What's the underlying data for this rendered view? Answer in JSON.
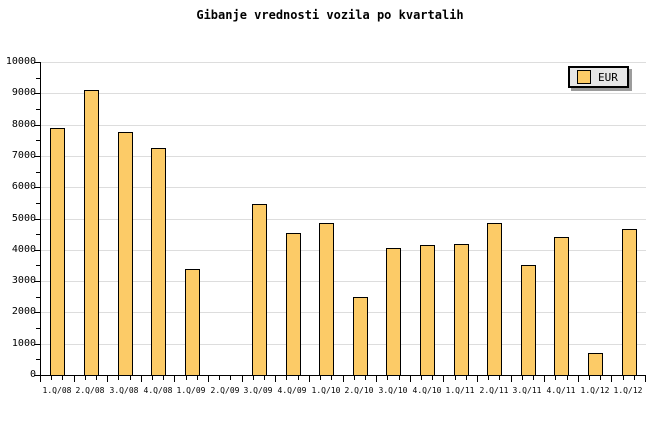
{
  "title": "Gibanje vrednosti vozila po kvartalih",
  "legend": {
    "label": "EUR"
  },
  "colors": {
    "background": "#FFFFFF",
    "bar_fill": "#FCCB67",
    "bar_border": "#000000",
    "grid": "#DDDDDD",
    "axis": "#000000",
    "legend_bg": "#E6E6E6",
    "legend_shadow": "#9C9C9C"
  },
  "y_axis": {
    "tick_labels": [
      "0",
      "1000",
      "2000",
      "3000",
      "4000",
      "5000",
      "6000",
      "7000",
      "8000",
      "9000",
      "10000"
    ]
  },
  "chart_data": {
    "type": "bar",
    "title": "Gibanje vrednosti vozila po kvartalih",
    "categories": [
      "1.Q/08",
      "2.Q/08",
      "3.Q/08",
      "4.Q/08",
      "1.Q/09",
      "2.Q/09",
      "3.Q/09",
      "4.Q/09",
      "1.Q/10",
      "2.Q/10",
      "3.Q/10",
      "4.Q/10",
      "1.Q/11",
      "2.Q/11",
      "3.Q/11",
      "4.Q/11",
      "1.Q/12",
      "1.Q/12"
    ],
    "values": [
      7900,
      9100,
      7750,
      7250,
      3400,
      0,
      5450,
      4550,
      4850,
      2500,
      4050,
      4150,
      4200,
      4850,
      3500,
      4400,
      700,
      4650
    ],
    "series_name": "EUR",
    "xlabel": "",
    "ylabel": "",
    "ylim": [
      0,
      10000
    ],
    "ytick_major_interval": 1000,
    "ytick_minor_interval": 500,
    "grid": "horizontal-major",
    "legend_position": "top-right"
  }
}
